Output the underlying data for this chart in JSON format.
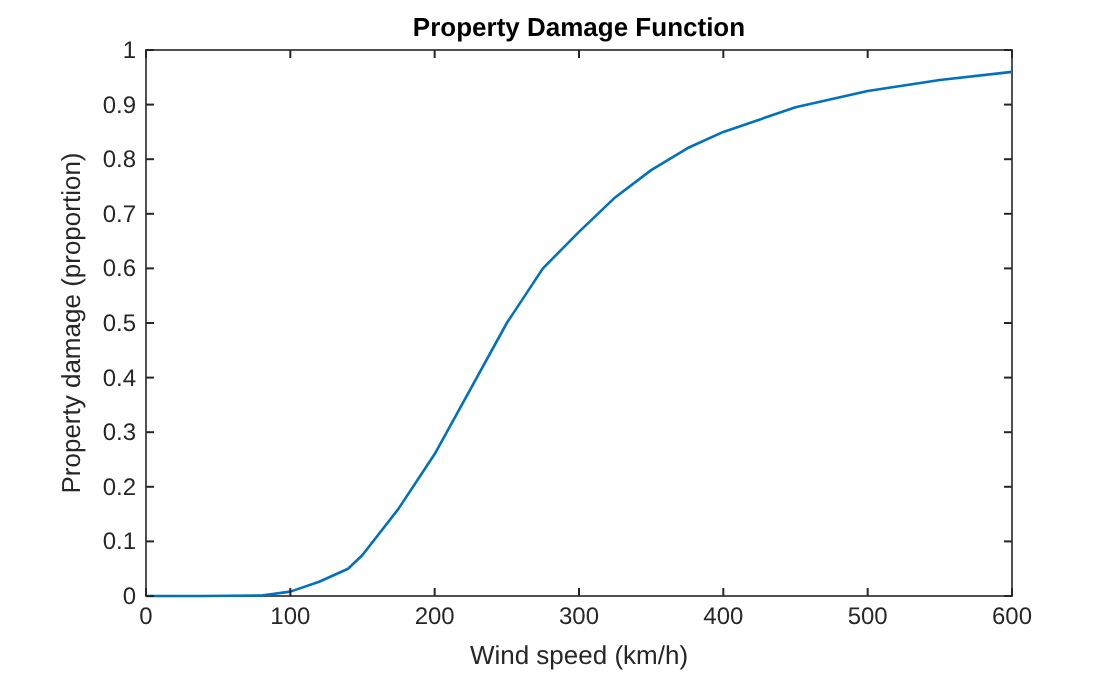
{
  "chart_data": {
    "type": "line",
    "title": "Property Damage Function",
    "xlabel": "Wind speed (km/h)",
    "ylabel": "Property damage (proportion)",
    "x": [
      0,
      40,
      80,
      100,
      120,
      140,
      150,
      175,
      200,
      225,
      250,
      275,
      300,
      325,
      350,
      375,
      400,
      450,
      500,
      550,
      600
    ],
    "series": [
      {
        "color": "#0072bd",
        "values": [
          0,
          0,
          0.001,
          0.008,
          0.026,
          0.05,
          0.075,
          0.16,
          0.26,
          0.38,
          0.5,
          0.6,
          0.667,
          0.73,
          0.78,
          0.82,
          0.85,
          0.895,
          0.925,
          0.945,
          0.96
        ]
      }
    ],
    "xlim": [
      0,
      600
    ],
    "xticks": [
      0,
      100,
      200,
      300,
      400,
      500,
      600
    ],
    "ylim": [
      0,
      1
    ],
    "yticks": [
      0,
      0.1,
      0.2,
      0.3,
      0.4,
      0.5,
      0.6,
      0.7,
      0.8,
      0.9,
      1
    ],
    "grid": false,
    "marker": "none",
    "line_style": "solid"
  }
}
